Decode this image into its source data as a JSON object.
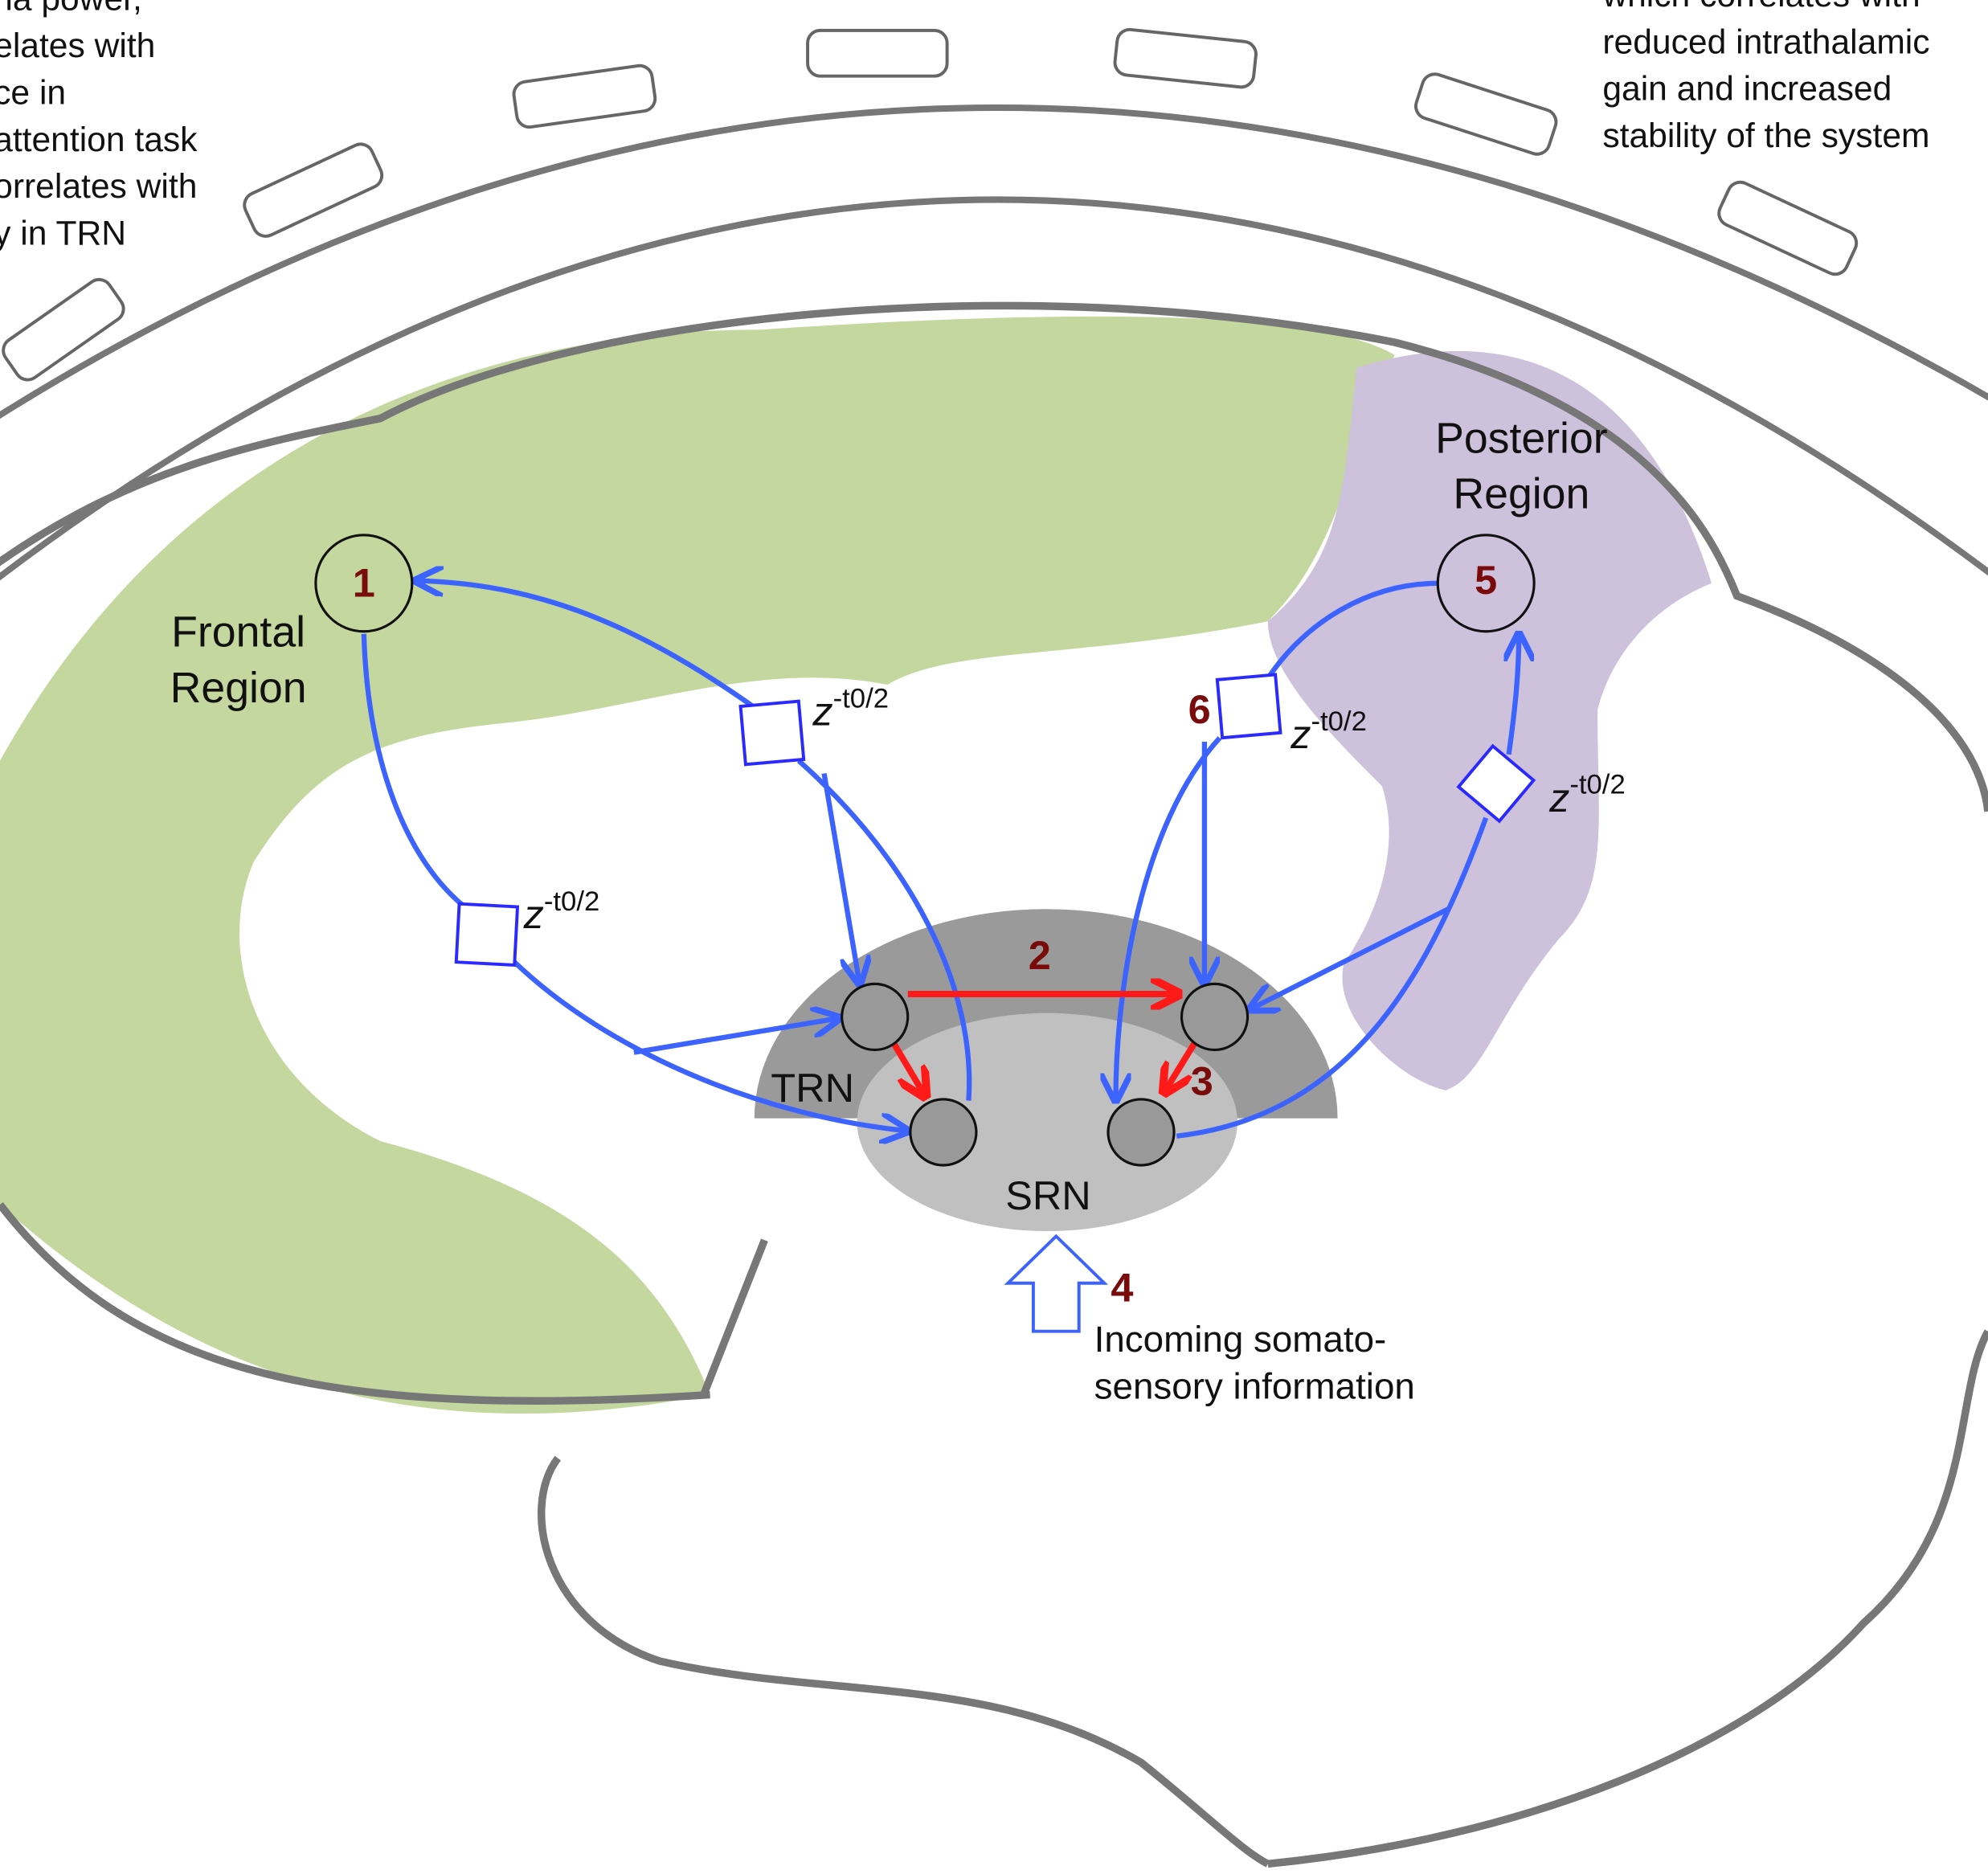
{
  "left_note": {
    "lines": [
      "na power,",
      "elates with",
      "ce in",
      "attention task",
      "orrelates with",
      "y in TRN"
    ]
  },
  "right_note": {
    "lines": [
      "which correlates with",
      "reduced intrathalamic",
      "gain and increased",
      "stability of the system"
    ]
  },
  "regions": {
    "frontal": [
      "Frontal",
      "Region"
    ],
    "posterior": [
      "Posterior",
      "Region"
    ]
  },
  "markers": {
    "frontal_node": "1",
    "trn_link": "2",
    "trn_srn_link": "3",
    "input": "4",
    "posterior_node": "5",
    "posterior_delay": "6"
  },
  "delays": [
    {
      "base": "z",
      "exponent": "-t0/2"
    },
    {
      "base": "z",
      "exponent": "-t0/2"
    },
    {
      "base": "z",
      "exponent": "-t0/2"
    },
    {
      "base": "z",
      "exponent": "-t0/2"
    }
  ],
  "nuclei": {
    "trn": "TRN",
    "srn": "SRN"
  },
  "input": {
    "lines": [
      "Incoming somato-",
      "sensory information"
    ]
  }
}
